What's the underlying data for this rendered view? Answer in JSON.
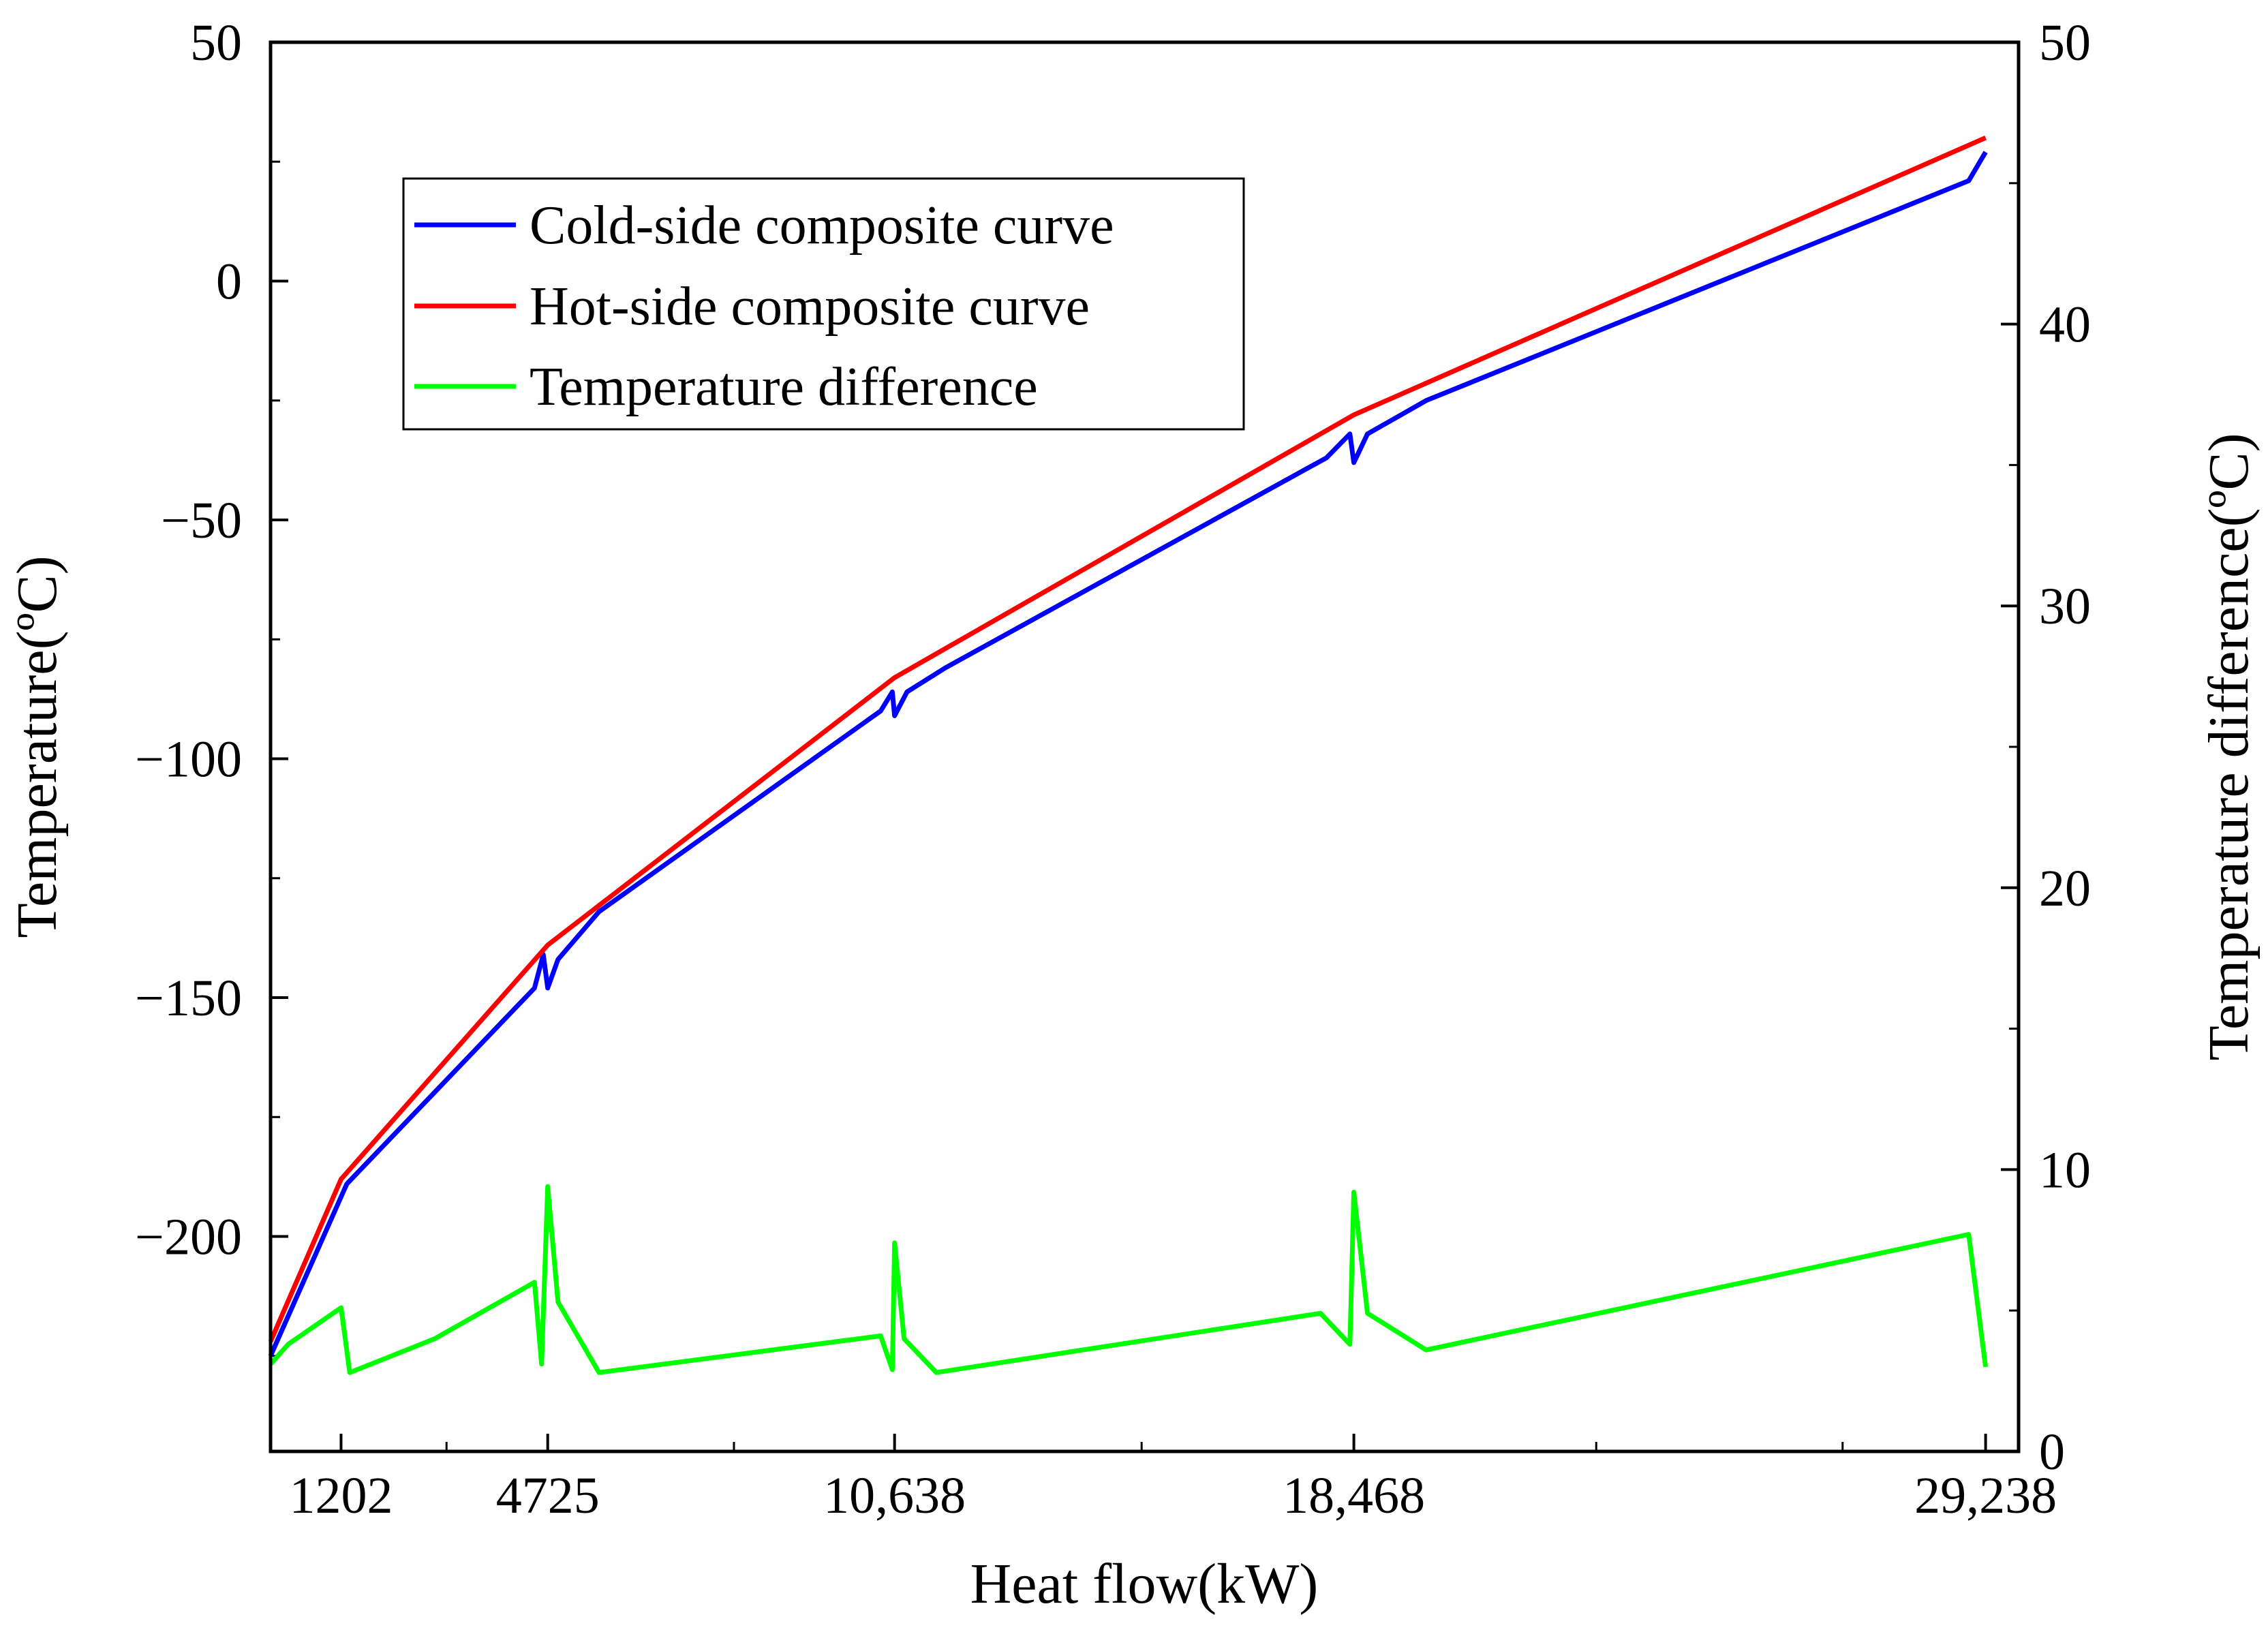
{
  "chart_data": {
    "type": "line",
    "title": "",
    "xlabel": "Heat flow(kW)",
    "ylabel": "Temperature(ºC)",
    "y2label": "Temperature difference(ºC)",
    "xlim": [
      0,
      29800
    ],
    "ylim": [
      -245,
      50
    ],
    "y2lim": [
      0,
      50
    ],
    "xticks": [
      {
        "value": 1202,
        "label": "1202"
      },
      {
        "value": 4725,
        "label": "4725"
      },
      {
        "value": 10638,
        "label": "10,638"
      },
      {
        "value": 18468,
        "label": "18,468"
      },
      {
        "value": 29238,
        "label": "29,238"
      }
    ],
    "xminor": [
      3000,
      7900,
      14850,
      22600,
      26800
    ],
    "yticks": [
      {
        "value": 50,
        "label": "50"
      },
      {
        "value": 0,
        "label": "0"
      },
      {
        "value": -50,
        "label": "−50"
      },
      {
        "value": -100,
        "label": "−100"
      },
      {
        "value": -150,
        "label": "−150"
      },
      {
        "value": -200,
        "label": "−200"
      }
    ],
    "yminor": [
      25,
      -25,
      -75,
      -125,
      -175,
      -225
    ],
    "y2ticks": [
      {
        "value": 50,
        "label": "50"
      },
      {
        "value": 40,
        "label": "40"
      },
      {
        "value": 30,
        "label": "30"
      },
      {
        "value": 20,
        "label": "20"
      },
      {
        "value": 10,
        "label": "10"
      },
      {
        "value": 0,
        "label": "0"
      }
    ],
    "y2minor": [
      45,
      35,
      25,
      15,
      5
    ],
    "legend": {
      "position": "top-left"
    },
    "series": [
      {
        "name": "Cold-side composite curve",
        "color": "#0000ff",
        "axis": "left",
        "x": [
          0,
          1300,
          4500,
          4650,
          4725,
          4900,
          5600,
          10400,
          10600,
          10638,
          10850,
          11500,
          18000,
          18400,
          18468,
          18700,
          19700,
          28950,
          29238
        ],
        "y": [
          -225,
          -189,
          -148,
          -141,
          -148,
          -142,
          -132,
          -90,
          -86,
          -91,
          -86,
          -81,
          -37,
          -32,
          -38,
          -32,
          -25,
          21,
          27
        ]
      },
      {
        "name": "Hot-side composite curve",
        "color": "#ff0000",
        "axis": "left",
        "x": [
          0,
          1202,
          4725,
          10638,
          18468,
          29238
        ],
        "y": [
          -222,
          -188,
          -139,
          -83,
          -28,
          30
        ]
      },
      {
        "name": "Temperature difference",
        "color": "#00ff00",
        "axis": "right",
        "x": [
          0,
          300,
          1202,
          1350,
          2800,
          4500,
          4620,
          4725,
          4900,
          5600,
          10400,
          10600,
          10638,
          10800,
          11350,
          17900,
          18400,
          18468,
          18700,
          19700,
          28950,
          29238
        ],
        "y": [
          3.1,
          3.8,
          5.1,
          2.8,
          4.0,
          6.0,
          3.1,
          9.4,
          5.3,
          2.8,
          4.1,
          2.9,
          7.4,
          4.0,
          2.8,
          4.9,
          3.8,
          9.2,
          4.9,
          3.6,
          7.7,
          3.0
        ]
      }
    ]
  }
}
